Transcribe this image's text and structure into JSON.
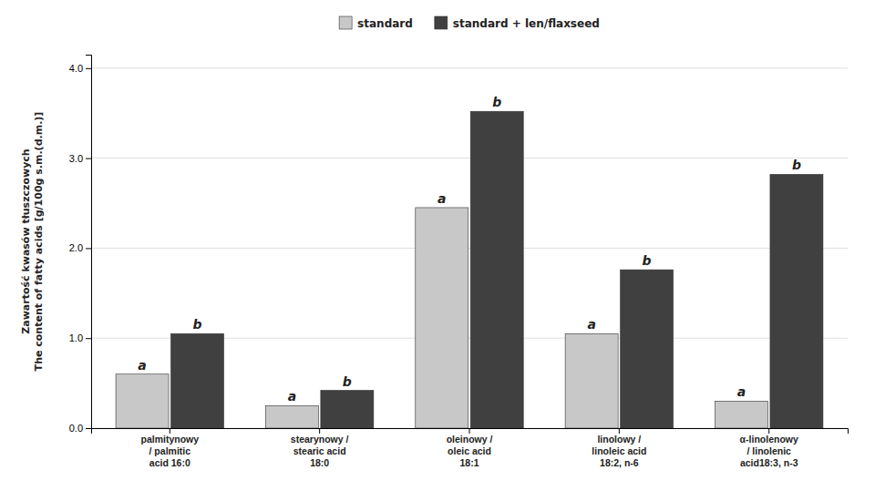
{
  "chart_data": {
    "type": "bar",
    "categories": [
      "palmitynowy\n/ palmitic\nacid 16:0",
      "stearynowy /\nstearic acid\n18:0",
      "oleinowy /\noleic acid\n18:1",
      "linolowy /\nlinoleic acid\n18:2, n-6",
      "α-linolenowy\n/ linolenic\nacid18:3, n-3"
    ],
    "series": [
      {
        "name": "standard",
        "color": "#c8c8c8",
        "values": [
          0.6,
          0.25,
          2.45,
          1.05,
          0.3
        ],
        "annotations": [
          "a",
          "a",
          "a",
          "a",
          "a"
        ]
      },
      {
        "name": "standard + len/flaxseed",
        "color": "#404040",
        "values": [
          1.05,
          0.42,
          3.52,
          1.76,
          2.82
        ],
        "annotations": [
          "b",
          "b",
          "b",
          "b",
          "b"
        ]
      }
    ],
    "y_label": "Zawartość kwasów tłuszczowych\nThe content of fatty acids [g/100g s.m.(d.m.)]",
    "ylim": [
      0.0,
      4.15
    ],
    "yticks": [
      {
        "value": 0,
        "label": "0.0"
      },
      {
        "value": 1,
        "label": "1.0"
      },
      {
        "value": 2,
        "label": "2.0"
      },
      {
        "value": 3,
        "label": "3.0"
      },
      {
        "value": 4,
        "label": "4.0"
      }
    ],
    "grid": true,
    "legend": "top"
  }
}
